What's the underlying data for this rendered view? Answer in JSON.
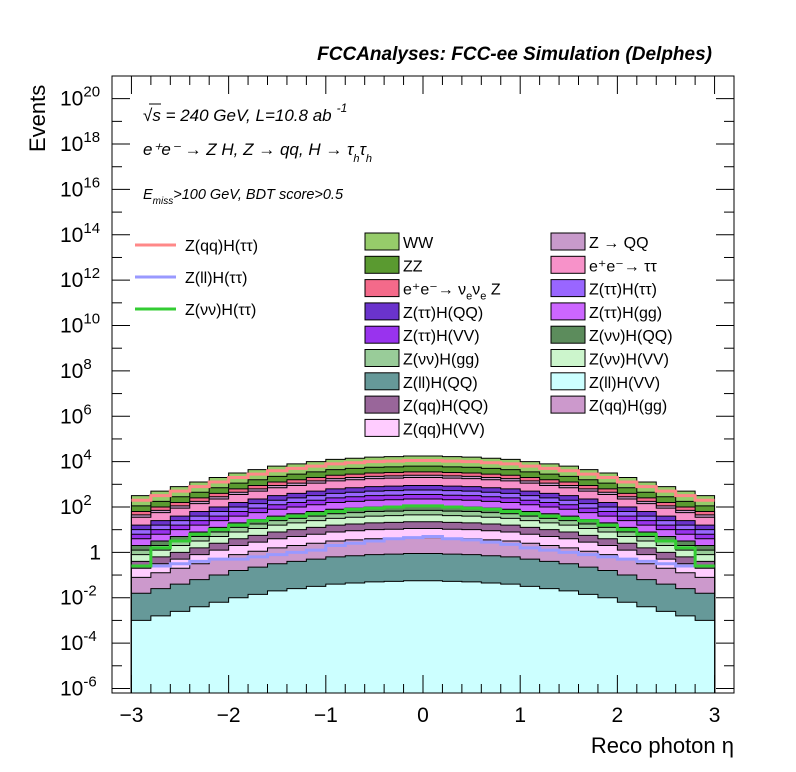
{
  "chart_data": {
    "type": "area",
    "title": "FCCAnalyses: FCC-ee Simulation (Delphes)",
    "annotations": {
      "energy_prefix": "√s",
      "energy_lumi": " = 240 GeV, L=10.8 ab",
      "lumi_exp": "-1",
      "process_line": "e⁺e⁻ → Z H, Z → qq, H → τ",
      "tau_sub": "h",
      "tau_sub2": "h",
      "cut_prefix": "E",
      "cut_sub": "miss",
      "cut_rest": ">100 GeV, BDT score>0.5"
    },
    "xlabel": "Reco photon η",
    "ylabel": "Events",
    "xlim": [
      -3.2,
      3.2
    ],
    "ylim_log10": [
      -6.2,
      21
    ],
    "log_y": true,
    "x_ticks": [
      "−3",
      "−2",
      "−1",
      "0",
      "1",
      "2",
      "3"
    ],
    "y_ticks": [
      {
        "base": "10",
        "exp": "-6",
        "power": -6
      },
      {
        "base": "10",
        "exp": "-4",
        "power": -4
      },
      {
        "base": "10",
        "exp": "-2",
        "power": -2
      },
      {
        "base": "1",
        "exp": "",
        "power": 0
      },
      {
        "base": "10",
        "exp": "2",
        "power": 2
      },
      {
        "base": "10",
        "exp": "4",
        "power": 4
      },
      {
        "base": "10",
        "exp": "6",
        "power": 6
      },
      {
        "base": "10",
        "exp": "8",
        "power": 8
      },
      {
        "base": "10",
        "exp": "10",
        "power": 10
      },
      {
        "base": "10",
        "exp": "12",
        "power": 12
      },
      {
        "base": "10",
        "exp": "14",
        "power": 14
      },
      {
        "base": "10",
        "exp": "16",
        "power": 16
      },
      {
        "base": "10",
        "exp": "18",
        "power": 18
      },
      {
        "base": "10",
        "exp": "20",
        "power": 20
      }
    ],
    "bin_edges_range": [
      -3.0,
      3.0
    ],
    "n_bins": 30,
    "stack_total_log10": [
      2.5,
      2.7,
      2.9,
      3.1,
      3.3,
      3.5,
      3.65,
      3.8,
      3.9,
      4.0,
      4.1,
      4.15,
      4.2,
      4.22,
      4.25,
      4.25,
      4.22,
      4.2,
      4.15,
      4.1,
      4.0,
      3.9,
      3.8,
      3.65,
      3.5,
      3.3,
      3.1,
      2.9,
      2.7,
      2.5
    ],
    "stack_order_bottom_to_top": [
      "Z(ll)H(VV)",
      "Z(ll)H(QQ)",
      "Z(qq)H(gg)",
      "Z(qq)H(VV)",
      "Z(qq)H(QQ)",
      "Z(ττ)H(VV)",
      "Z(ττ)H(gg)",
      "Z(ττ)H(QQ)",
      "Z(ττ)H(ττ)",
      "Z(νν)H(VV)",
      "Z(νν)H(gg)",
      "Z(νν)H(QQ)",
      "Z → QQ",
      "e⁺e⁻→ ν_eν_e Z",
      "e⁺e⁻→ ττ",
      "ZZ",
      "WW"
    ],
    "stacked_series": [
      {
        "name": "WW",
        "color": "#96cc6a",
        "log10_offset": 0.0
      },
      {
        "name": "ZZ",
        "color": "#5a9a30",
        "log10_offset": -0.45
      },
      {
        "name": "e⁺e⁻→ ν_eν_e Z",
        "color": "#f46a8a",
        "log10_offset": -0.7
      },
      {
        "name": "Z → QQ",
        "color": "#c89acb",
        "log10_offset": -0.85
      },
      {
        "name": "e⁺e⁻→ ττ",
        "color": "#f792c9",
        "log10_offset": -0.95
      },
      {
        "name": "Z(ττ)H(QQ)",
        "color": "#6a33cc",
        "log10_offset": -1.3
      },
      {
        "name": "Z(ττ)H(ττ)",
        "color": "#9966ff",
        "log10_offset": -1.5
      },
      {
        "name": "Z(ττ)H(VV)",
        "color": "#9933ee",
        "log10_offset": -1.7
      },
      {
        "name": "Z(ττ)H(gg)",
        "color": "#cc66ff",
        "log10_offset": -1.9
      },
      {
        "name": "Z(νν)H(QQ)",
        "color": "#5c8c5c",
        "log10_offset": -2.2
      },
      {
        "name": "Z(νν)H(gg)",
        "color": "#99cc99",
        "log10_offset": -2.4
      },
      {
        "name": "Z(νν)H(VV)",
        "color": "#ccf5cc",
        "log10_offset": -2.6
      },
      {
        "name": "Z(qq)H(QQ)",
        "color": "#99669a",
        "log10_offset": -2.9
      },
      {
        "name": "Z(qq)H(VV)",
        "color": "#ffccff",
        "log10_offset": -3.2
      },
      {
        "name": "Z(qq)H(gg)",
        "color": "#cc99cc",
        "log10_offset": -3.6
      },
      {
        "name": "Z(ll)H(QQ)",
        "color": "#669999",
        "log10_offset": -4.3
      },
      {
        "name": "Z(ll)H(VV)",
        "color": "#ccffff",
        "log10_offset": -5.5
      }
    ],
    "signal_series": [
      {
        "name": "Z(qq)H(ττ)",
        "color": "#ff8888",
        "values_log10": [
          2.3,
          2.5,
          2.7,
          2.9,
          3.1,
          3.3,
          3.45,
          3.6,
          3.7,
          3.8,
          3.9,
          3.95,
          4.0,
          4.02,
          4.05,
          4.05,
          4.02,
          4.0,
          3.95,
          3.9,
          3.8,
          3.7,
          3.6,
          3.45,
          3.3,
          3.1,
          2.9,
          2.7,
          2.5,
          2.3
        ]
      },
      {
        "name": "Z(ll)H(ττ)",
        "color": "#9999ff",
        "values_log10": [
          -0.6,
          -0.6,
          -0.5,
          -0.4,
          -0.3,
          -0.3,
          -0.2,
          -0.1,
          0.0,
          0.1,
          0.3,
          0.4,
          0.5,
          0.6,
          0.65,
          0.7,
          0.6,
          0.55,
          0.45,
          0.35,
          0.2,
          0.1,
          0.0,
          -0.1,
          -0.2,
          -0.3,
          -0.4,
          -0.5,
          -0.6,
          -0.6
        ]
      },
      {
        "name": "Z(νν)H(ττ)",
        "color": "#33cc33",
        "values_log10": [
          -0.6,
          0.2,
          0.5,
          0.8,
          1.0,
          1.2,
          1.4,
          1.5,
          1.6,
          1.7,
          1.8,
          1.9,
          1.95,
          2.0,
          2.05,
          2.05,
          2.0,
          1.95,
          1.9,
          1.8,
          1.7,
          1.6,
          1.5,
          1.4,
          1.2,
          1.0,
          0.8,
          0.5,
          0.2,
          -0.6
        ]
      }
    ],
    "legend": {
      "signals": [
        "Z(qq)H(ττ)",
        "Z(ll)H(ττ)",
        "Z(νν)H(ττ)"
      ],
      "col1": [
        {
          "label": "WW",
          "color": "#96cc6a"
        },
        {
          "label": "ZZ",
          "color": "#5a9a30"
        },
        {
          "label": "e⁺e⁻→ ν",
          "sub1": "e",
          "mid": "ν",
          "sub2": "e",
          "tail": " Z",
          "color": "#f46a8a"
        },
        {
          "label": "Z(ττ)H(QQ)",
          "color": "#6a33cc"
        },
        {
          "label": "Z(ττ)H(VV)",
          "color": "#9933ee"
        },
        {
          "label": "Z(νν)H(gg)",
          "color": "#99cc99"
        },
        {
          "label": "Z(ll)H(QQ)",
          "color": "#669999"
        },
        {
          "label": "Z(qq)H(QQ)",
          "color": "#99669a"
        },
        {
          "label": "Z(qq)H(VV)",
          "color": "#ffccff"
        }
      ],
      "col2": [
        {
          "label": "Z → QQ",
          "color": "#c89acb"
        },
        {
          "label": "e⁺e⁻→ ττ",
          "color": "#f792c9"
        },
        {
          "label": "Z(ττ)H(ττ)",
          "color": "#9966ff"
        },
        {
          "label": "Z(ττ)H(gg)",
          "color": "#cc66ff"
        },
        {
          "label": "Z(νν)H(QQ)",
          "color": "#5c8c5c"
        },
        {
          "label": "Z(νν)H(VV)",
          "color": "#ccf5cc"
        },
        {
          "label": "Z(ll)H(VV)",
          "color": "#ccffff"
        },
        {
          "label": "Z(qq)H(gg)",
          "color": "#cc99cc"
        }
      ]
    }
  }
}
